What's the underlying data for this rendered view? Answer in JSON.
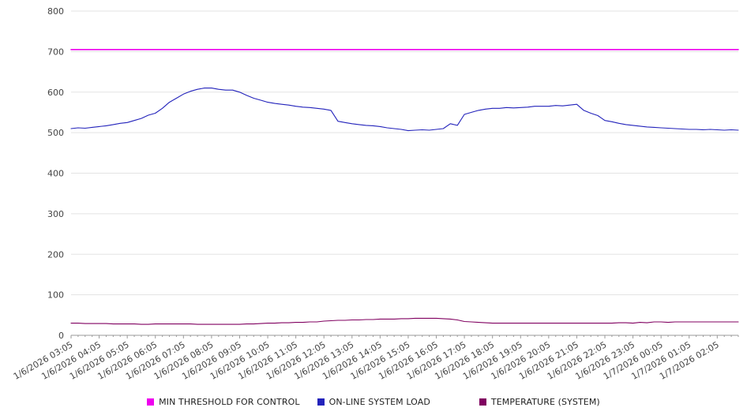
{
  "chart_data": {
    "type": "line",
    "title": "",
    "xlabel": "",
    "ylabel": "",
    "ylim": [
      0,
      800
    ],
    "yticks": [
      0,
      100,
      200,
      300,
      400,
      500,
      600,
      700,
      800
    ],
    "grid": true,
    "legend_position": "bottom",
    "points_per_label_interval": 4,
    "x_tick_labels": [
      "1/6/2026 03:05",
      "1/6/2026 04:05",
      "1/6/2026 05:05",
      "1/6/2026 06:05",
      "1/6/2026 07:05",
      "1/6/2026 08:05",
      "1/6/2026 09:05",
      "1/6/2026 10:05",
      "1/6/2026 11:05",
      "1/6/2026 12:05",
      "1/6/2026 13:05",
      "1/6/2026 14:05",
      "1/6/2026 15:05",
      "1/6/2026 16:05",
      "1/6/2026 17:05",
      "1/6/2026 18:05",
      "1/6/2026 19:05",
      "1/6/2026 20:05",
      "1/6/2026 21:05",
      "1/6/2026 22:05",
      "1/6/2026 23:05",
      "1/7/2026 00:05",
      "1/7/2026 01:05",
      "1/7/2026 02:05"
    ],
    "series": [
      {
        "name": "MIN THRESHOLD FOR CONTROL",
        "color": "#ee00ee",
        "constant": 705
      },
      {
        "name": "ON-LINE SYSTEM LOAD",
        "color": "#2222bb",
        "values": [
          510,
          512,
          511,
          513,
          515,
          517,
          520,
          523,
          525,
          530,
          535,
          543,
          548,
          560,
          575,
          585,
          595,
          602,
          607,
          610,
          610,
          607,
          605,
          605,
          600,
          592,
          585,
          580,
          575,
          572,
          570,
          568,
          565,
          563,
          562,
          560,
          558,
          555,
          528,
          525,
          522,
          520,
          518,
          517,
          515,
          512,
          510,
          508,
          505,
          506,
          507,
          506,
          508,
          510,
          522,
          518,
          545,
          550,
          555,
          558,
          560,
          560,
          562,
          561,
          562,
          563,
          565,
          565,
          565,
          567,
          566,
          568,
          570,
          555,
          548,
          542,
          530,
          527,
          523,
          520,
          518,
          516,
          514,
          513,
          512,
          511,
          510,
          509,
          508,
          508,
          507,
          508,
          507,
          506,
          507,
          506
        ]
      },
      {
        "name": "TEMPERATURE (SYSTEM)",
        "color": "#800060",
        "values": [
          30,
          30,
          29,
          29,
          29,
          29,
          28,
          28,
          28,
          28,
          27,
          27,
          28,
          28,
          28,
          28,
          28,
          28,
          27,
          27,
          27,
          27,
          27,
          27,
          27,
          28,
          28,
          29,
          30,
          30,
          31,
          31,
          32,
          32,
          33,
          33,
          35,
          36,
          37,
          37,
          38,
          38,
          39,
          39,
          40,
          40,
          40,
          41,
          41,
          42,
          42,
          42,
          42,
          41,
          40,
          38,
          34,
          33,
          32,
          31,
          30,
          30,
          30,
          30,
          30,
          30,
          30,
          30,
          30,
          30,
          30,
          30,
          30,
          30,
          30,
          30,
          30,
          30,
          31,
          31,
          30,
          32,
          31,
          33,
          33,
          32,
          33,
          33,
          33,
          33,
          33,
          33,
          33,
          33,
          33,
          33
        ]
      }
    ]
  }
}
